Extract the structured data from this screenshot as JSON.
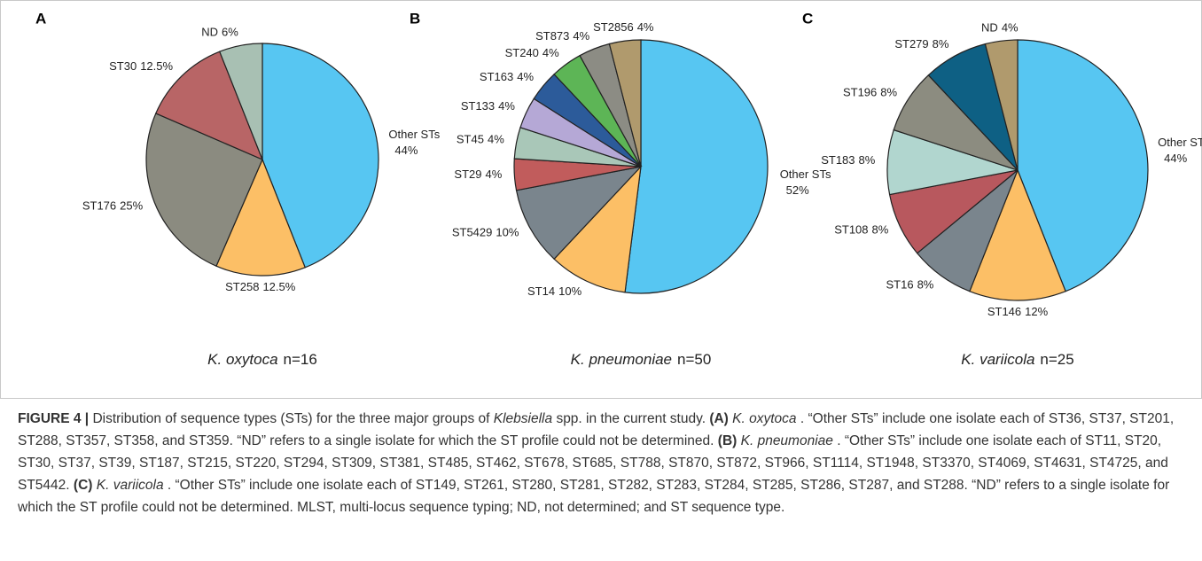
{
  "chart_data": [
    {
      "type": "pie",
      "panel": "A",
      "label_species": "K. oxytoca",
      "label_n": "n=16",
      "categories": [
        "Other STs",
        "ST258",
        "ST176",
        "ST30",
        "ND"
      ],
      "values": [
        44,
        12.5,
        25,
        12.5,
        6
      ],
      "value_labels": [
        "44%",
        "12.5%",
        "25%",
        "12.5%",
        "6%"
      ],
      "colors": [
        "#57c6f2",
        "#fcbf66",
        "#8b8b80",
        "#b86566",
        "#a8c0b3"
      ]
    },
    {
      "type": "pie",
      "panel": "B",
      "label_species": "K. pneumoniae",
      "label_n": "n=50",
      "categories": [
        "Other STs",
        "ST14",
        "ST5429",
        "ST29",
        "ST45",
        "ST133",
        "ST163",
        "ST240",
        "ST873",
        "ST2856"
      ],
      "values": [
        52,
        10,
        10,
        4,
        4,
        4,
        4,
        4,
        4,
        4
      ],
      "value_labels": [
        "52%",
        "10%",
        "10%",
        "4%",
        "4%",
        "4%",
        "4%",
        "4%",
        "4%",
        "4%"
      ],
      "colors": [
        "#57c6f2",
        "#fcbf66",
        "#7a858d",
        "#c15c5c",
        "#a9c7b8",
        "#b5a8d6",
        "#2c5b9a",
        "#5db556",
        "#8c8c84",
        "#b09a6d"
      ]
    },
    {
      "type": "pie",
      "panel": "C",
      "label_species": "K. variicola",
      "label_n": "n=25",
      "categories": [
        "Other STs",
        "ST146",
        "ST16",
        "ST108",
        "ST183",
        "ST196",
        "ST279",
        "ND"
      ],
      "values": [
        44,
        12,
        8,
        8,
        8,
        8,
        8,
        4
      ],
      "value_labels": [
        "44%",
        "12%",
        "8%",
        "8%",
        "8%",
        "8%",
        "8%",
        "4%"
      ],
      "colors": [
        "#57c6f2",
        "#fcbf66",
        "#7a858d",
        "#b8585e",
        "#b1d6cf",
        "#8c8c80",
        "#0e6084",
        "#b09a6d"
      ]
    }
  ],
  "caption": {
    "label": "FIGURE 4 |",
    "segments": [
      {
        "text": "Distribution of sequence types (STs) for the three major groups of ",
        "style": "normal"
      },
      {
        "text": "Klebsiella",
        "style": "italic"
      },
      {
        "text": "spp. in the current study.",
        "style": "normal"
      },
      {
        "text": "(A)",
        "style": "bold"
      },
      {
        "text": "K. oxytoca",
        "style": "italic"
      },
      {
        "text": ". “Other STs” include one isolate each of ST36, ST37, ST201, ST288, ST357, ST358, and ST359. “ND” refers to a single isolate for which the ST profile could not be determined.",
        "style": "normal"
      },
      {
        "text": "(B)",
        "style": "bold"
      },
      {
        "text": "K. pneumoniae",
        "style": "italic"
      },
      {
        "text": ". “Other STs” include one isolate each of ST11, ST20, ST30, ST37, ST39, ST187, ST215, ST220, ST294, ST309, ST381, ST485, ST462, ST678, ST685, ST788, ST870, ST872, ST966, ST1114, ST1948, ST3370, ST4069, ST4631, ST4725, and ST5442.",
        "style": "normal"
      },
      {
        "text": "(C)",
        "style": "bold"
      },
      {
        "text": "K. variicola",
        "style": "italic"
      },
      {
        "text": ". “Other STs” include one isolate each of ST149, ST261, ST280, ST281, ST282, ST283, ST284, ST285, ST286, ST287, and ST288. “ND” refers to a single isolate for which the ST profile could not be determined. MLST, multi-locus sequence typing; ND, not determined; and ST sequence type.",
        "style": "normal"
      }
    ]
  }
}
